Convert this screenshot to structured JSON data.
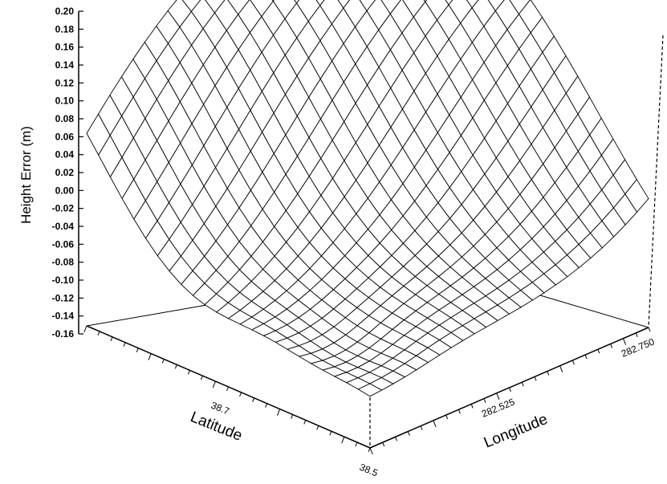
{
  "chart_data": {
    "type": "surface",
    "zlabel": "Height Error  (m)",
    "xlabel": "Latitude",
    "ylabel": "Longitude",
    "zlim": [
      -0.16,
      0.2
    ],
    "z_ticks": [
      "0.20",
      "0.18",
      "0.16",
      "0.14",
      "0.12",
      "0.10",
      "0.08",
      "0.06",
      "0.04",
      "0.02",
      "0.00",
      "-0.02",
      "-0.04",
      "-0.06",
      "-0.08",
      "-0.10",
      "-0.12",
      "-0.14",
      "-0.16"
    ],
    "latitude_ticks": [
      "38.7",
      "38.5"
    ],
    "longitude_ticks": [
      "282.525",
      "282.750"
    ],
    "latitude_range": [
      38.5,
      38.9
    ],
    "longitude_range": [
      282.3,
      282.75
    ],
    "grid_size": [
      24,
      24
    ],
    "surface_summary": {
      "near_lat_edge_low": -0.1,
      "far_corner_high": 0.18,
      "peak": 0.2
    },
    "grid": "off",
    "legend": "none"
  }
}
